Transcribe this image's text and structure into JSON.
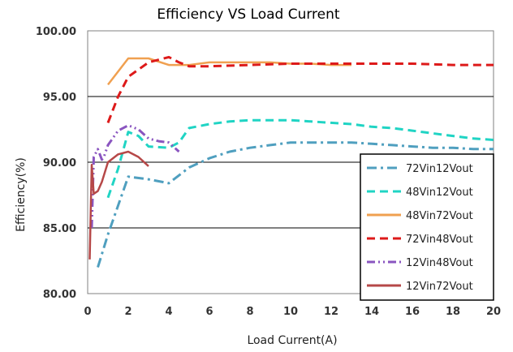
{
  "chart_data": {
    "type": "line",
    "title": "Efficiency VS Load Current",
    "xlabel": "Load Current(A)",
    "ylabel": "Efficiency(%)",
    "xlim": [
      0,
      20
    ],
    "ylim": [
      80,
      100
    ],
    "x_ticks": [
      "0",
      "2",
      "4",
      "6",
      "8",
      "10",
      "12",
      "14",
      "16",
      "18",
      "20"
    ],
    "y_ticks": [
      "80.00",
      "85.00",
      "90.00",
      "95.00",
      "100.00"
    ],
    "grid": "horizontal",
    "legend_position": "right",
    "series": [
      {
        "name": "72Vin12Vout",
        "color": "#4f9fbf",
        "dash": "dashdot",
        "points": [
          [
            0.5,
            82.0
          ],
          [
            1.0,
            84.5
          ],
          [
            2.0,
            88.9
          ],
          [
            3.0,
            88.7
          ],
          [
            4.0,
            88.4
          ],
          [
            5.0,
            89.6
          ],
          [
            6.0,
            90.3
          ],
          [
            7.0,
            90.8
          ],
          [
            8.0,
            91.1
          ],
          [
            9.0,
            91.3
          ],
          [
            10.0,
            91.5
          ],
          [
            11.0,
            91.5
          ],
          [
            12.0,
            91.5
          ],
          [
            13.0,
            91.5
          ],
          [
            14.0,
            91.4
          ],
          [
            15.0,
            91.3
          ],
          [
            16.0,
            91.2
          ],
          [
            17.0,
            91.1
          ],
          [
            18.0,
            91.1
          ],
          [
            19.0,
            91.0
          ],
          [
            20.0,
            91.0
          ]
        ]
      },
      {
        "name": "48Vin12Vout",
        "color": "#20d4c4",
        "dash": "dash",
        "points": [
          [
            1.0,
            87.3
          ],
          [
            1.5,
            89.5
          ],
          [
            2.0,
            92.3
          ],
          [
            2.5,
            92.0
          ],
          [
            3.0,
            91.2
          ],
          [
            4.0,
            91.1
          ],
          [
            4.5,
            91.5
          ],
          [
            5.0,
            92.6
          ],
          [
            6.0,
            92.9
          ],
          [
            7.0,
            93.1
          ],
          [
            8.0,
            93.2
          ],
          [
            9.0,
            93.2
          ],
          [
            10.0,
            93.2
          ],
          [
            11.0,
            93.1
          ],
          [
            12.0,
            93.0
          ],
          [
            13.0,
            92.9
          ],
          [
            14.0,
            92.7
          ],
          [
            15.0,
            92.6
          ],
          [
            16.0,
            92.4
          ],
          [
            17.0,
            92.2
          ],
          [
            18.0,
            92.0
          ],
          [
            19.0,
            91.8
          ],
          [
            20.0,
            91.7
          ]
        ]
      },
      {
        "name": "48Vin72Vout",
        "color": "#f0a050",
        "dash": "solid",
        "points": [
          [
            1.0,
            95.9
          ],
          [
            2.0,
            97.9
          ],
          [
            3.0,
            97.9
          ],
          [
            4.0,
            97.4
          ],
          [
            5.0,
            97.4
          ],
          [
            6.0,
            97.6
          ],
          [
            7.0,
            97.6
          ],
          [
            8.0,
            97.6
          ],
          [
            9.0,
            97.6
          ],
          [
            10.0,
            97.5
          ],
          [
            11.0,
            97.5
          ],
          [
            12.0,
            97.4
          ],
          [
            13.0,
            97.4
          ]
        ]
      },
      {
        "name": "72Vin48Vout",
        "color": "#dd1a1a",
        "dash": "dash",
        "points": [
          [
            1.0,
            93.0
          ],
          [
            1.5,
            95.0
          ],
          [
            2.0,
            96.5
          ],
          [
            3.0,
            97.6
          ],
          [
            4.0,
            98.0
          ],
          [
            4.5,
            97.6
          ],
          [
            5.0,
            97.3
          ],
          [
            6.0,
            97.3
          ],
          [
            8.0,
            97.4
          ],
          [
            10.0,
            97.5
          ],
          [
            12.0,
            97.5
          ],
          [
            14.0,
            97.5
          ],
          [
            16.0,
            97.5
          ],
          [
            18.0,
            97.4
          ],
          [
            20.0,
            97.4
          ]
        ]
      },
      {
        "name": "12Vin48Vout",
        "color": "#8a55c0",
        "dash": "dashdotdot",
        "points": [
          [
            0.2,
            85.0
          ],
          [
            0.3,
            90.4
          ],
          [
            0.5,
            91.0
          ],
          [
            0.7,
            90.2
          ],
          [
            0.8,
            90.4
          ],
          [
            1.0,
            91.3
          ],
          [
            1.5,
            92.4
          ],
          [
            2.0,
            92.8
          ],
          [
            2.5,
            92.5
          ],
          [
            3.0,
            91.8
          ],
          [
            3.5,
            91.6
          ],
          [
            4.0,
            91.5
          ],
          [
            4.5,
            90.8
          ]
        ]
      },
      {
        "name": "12Vin72Vout",
        "color": "#b64848",
        "dash": "solid",
        "points": [
          [
            0.1,
            82.6
          ],
          [
            0.2,
            89.8
          ],
          [
            0.3,
            87.6
          ],
          [
            0.5,
            87.8
          ],
          [
            0.7,
            88.5
          ],
          [
            1.0,
            90.0
          ],
          [
            1.5,
            90.6
          ],
          [
            2.0,
            90.8
          ],
          [
            2.5,
            90.4
          ],
          [
            3.0,
            89.7
          ]
        ]
      }
    ]
  }
}
